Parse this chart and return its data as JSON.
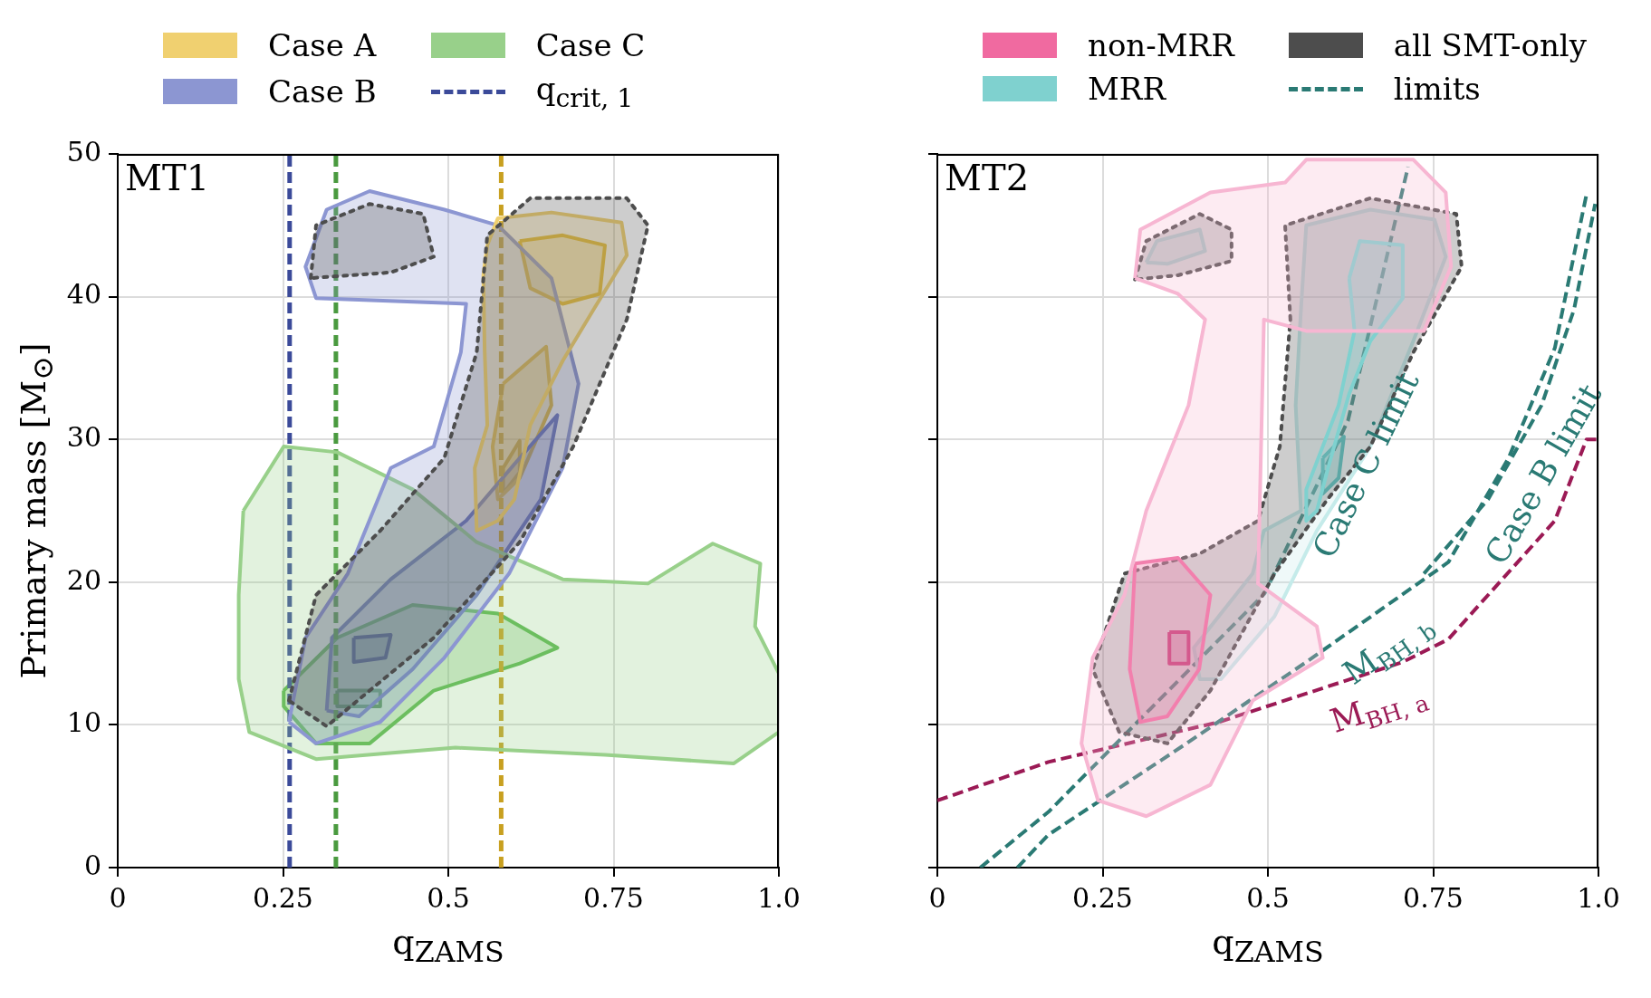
{
  "chart_data": [
    {
      "type": "line",
      "xlabel": "q$_{ZAMS}$",
      "ylabel": "Primary mass [M$_{⊙}$]",
      "xlim": [
        0,
        1
      ],
      "ylim": [
        0,
        50
      ],
      "xticks": [
        0,
        0.25,
        0.5,
        0.75,
        {
          "value": 1,
          "label": "1.0"
        }
      ],
      "yticks": [
        0,
        10,
        20,
        30,
        40,
        50
      ],
      "grid": true,
      "legend": "top",
      "annotations": [
        "MT1"
      ],
      "series": [
        {
          "type": "area",
          "color": "#4d4d4d",
          "line_style": "dotted",
          "x": [
            0.259,
            0.3,
            0.397,
            0.494,
            0.543,
            0.559,
            0.624,
            0.77,
            0.802,
            0.77,
            0.689,
            0.608,
            0.478,
            0.381,
            0.316,
            0.259
          ],
          "values": [
            11.7,
            19.1,
            23.6,
            28.7,
            36.1,
            44.3,
            46.9,
            46.9,
            45.0,
            38.4,
            29.5,
            22.8,
            16.1,
            12.4,
            9.9,
            11.7
          ]
        },
        {
          "type": "area",
          "color": "#4d4d4d",
          "line_style": "dotted",
          "x": [
            0.292,
            0.3,
            0.381,
            0.462,
            0.478,
            0.413,
            0.292
          ],
          "values": [
            41.3,
            45.0,
            46.5,
            45.8,
            42.8,
            41.7,
            41.3
          ]
        },
        {
          "type": "area",
          "name": "Case A",
          "color": "#f0d070",
          "x": [
            0.559,
            0.575,
            0.656,
            0.762,
            0.77,
            0.721,
            0.673,
            0.624,
            0.6,
            0.575,
            0.543,
            0.54,
            0.559,
            0.555,
            0.553,
            0.559
          ],
          "values": [
            43.6,
            45.5,
            45.9,
            45.2,
            42.9,
            39.2,
            35.5,
            31.0,
            25.8,
            24.3,
            23.6,
            28.0,
            31.0,
            36.2,
            41.5,
            43.6
          ]
        },
        {
          "type": "area",
          "name": "Case B",
          "color": "#8c96d2",
          "x": [
            0.259,
            0.284,
            0.348,
            0.413,
            0.478,
            0.519,
            0.527,
            0.3,
            0.284,
            0.316,
            0.381,
            0.494,
            0.575,
            0.656,
            0.697,
            0.673,
            0.592,
            0.494,
            0.397,
            0.3,
            0.259
          ],
          "values": [
            10.2,
            16.1,
            20.6,
            28.0,
            29.5,
            36.1,
            39.5,
            39.9,
            42.1,
            46.1,
            47.4,
            46.1,
            45.0,
            41.3,
            33.9,
            28.0,
            20.6,
            14.7,
            10.2,
            8.7,
            10.2
          ]
        },
        {
          "type": "area",
          "name": "Case C",
          "color": "#98d08a",
          "x": [
            0.19,
            0.251,
            0.332,
            0.446,
            0.543,
            0.673,
            0.802,
            0.9,
            0.972,
            0.964,
            1.0,
            1.0,
            0.932,
            0.737,
            0.511,
            0.3,
            0.199,
            0.183,
            0.183,
            0.19
          ],
          "values": [
            25.0,
            29.5,
            29.1,
            26.5,
            22.8,
            20.2,
            19.9,
            22.7,
            21.3,
            16.9,
            13.6,
            9.5,
            7.3,
            7.9,
            8.4,
            7.6,
            9.5,
            13.2,
            19.1,
            25.0
          ]
        },
        {
          "type": "line",
          "name": "q$_{crit, 1}$",
          "color": "#3b4a99",
          "line_style": "dashed",
          "x": [
            0.26,
            0.26
          ],
          "values": [
            0,
            50
          ]
        },
        {
          "type": "line",
          "color": "#4a9a3f",
          "line_style": "dashed",
          "x": [
            0.33,
            0.33
          ],
          "values": [
            0,
            50
          ]
        },
        {
          "type": "line",
          "color": "#c8a020",
          "line_style": "dashed",
          "x": [
            0.58,
            0.58
          ],
          "values": [
            0,
            50
          ]
        },
        {
          "type": "area",
          "color": "#6670c0",
          "x": [
            0.316,
            0.324,
            0.413,
            0.527,
            0.608,
            0.665,
            0.64,
            0.543,
            0.446,
            0.365,
            0.316
          ],
          "values": [
            11.0,
            16.1,
            20.2,
            24.3,
            28.7,
            31.7,
            25.8,
            19.1,
            13.9,
            10.6,
            11.0
          ]
        },
        {
          "type": "area",
          "color": "#2e3a80",
          "x": [
            0.357,
            0.413,
            0.405,
            0.357,
            0.357
          ],
          "values": [
            16.1,
            16.3,
            14.7,
            14.4,
            16.1
          ]
        },
        {
          "type": "area",
          "color": "#5cb850",
          "x": [
            0.251,
            0.332,
            0.446,
            0.575,
            0.665,
            0.608,
            0.478,
            0.381,
            0.3,
            0.251,
            0.251
          ],
          "values": [
            12.4,
            16.1,
            18.4,
            17.8,
            15.4,
            14.3,
            12.4,
            8.7,
            8.7,
            11.3,
            12.4
          ]
        },
        {
          "type": "area",
          "color": "#3a7a3a",
          "x": [
            0.332,
            0.397,
            0.397,
            0.332,
            0.332
          ],
          "values": [
            12.4,
            12.4,
            11.3,
            11.3,
            12.4
          ]
        },
        {
          "type": "area",
          "color": "#e6bc30",
          "x": [
            0.608,
            0.673,
            0.737,
            0.729,
            0.673,
            0.624,
            0.608
          ],
          "values": [
            43.9,
            44.3,
            43.6,
            40.2,
            39.5,
            40.6,
            43.9
          ]
        },
        {
          "type": "area",
          "color": "#e6bc30",
          "x": [
            0.583,
            0.648,
            0.656,
            0.608,
            0.575,
            0.567,
            0.583
          ],
          "values": [
            33.9,
            36.5,
            32.4,
            27.3,
            25.8,
            29.5,
            33.9
          ]
        },
        {
          "type": "area",
          "color": "#b8962a",
          "x": [
            0.583,
            0.608,
            0.608,
            0.583,
            0.583
          ],
          "values": [
            28.0,
            29.9,
            27.7,
            26.2,
            28.0
          ]
        }
      ]
    },
    {
      "type": "line",
      "xlabel": "q$_{ZAMS}$",
      "xlim": [
        0,
        1
      ],
      "ylim": [
        0,
        50
      ],
      "xticks": [
        0,
        0.25,
        0.5,
        0.75,
        {
          "value": 1,
          "label": "1.0"
        }
      ],
      "yticks": [
        0,
        10,
        20,
        30,
        40,
        50
      ],
      "tick_labels": "x",
      "grid": true,
      "legend": "top",
      "annotations": [
        "MT2",
        {
          "text": "Case C limit",
          "x": 0.6,
          "y": 29.3
        },
        {
          "text": "Case B limit",
          "x": 0.87,
          "y": 28.8
        },
        {
          "text": "M$_{BH, b}$",
          "x": 0.65,
          "y": 17.4
        },
        {
          "text": "M$_{BH, a}$",
          "x": 0.65,
          "y": 13.6
        }
      ],
      "series": [
        {
          "type": "area",
          "color": "#f7b6d2",
          "x": [
            0.299,
            0.307,
            0.413,
            0.526,
            0.558,
            0.72,
            0.769,
            0.777,
            0.736,
            0.558,
            0.494,
            0.485,
            0.574,
            0.583,
            0.477,
            0.413,
            0.316,
            0.243,
            0.218,
            0.235,
            0.283,
            0.316,
            0.38,
            0.405,
            0.364,
            0.299
          ],
          "values": [
            41.3,
            44.7,
            47.3,
            48.0,
            49.6,
            49.6,
            47.3,
            42.1,
            37.6,
            37.6,
            38.4,
            19.9,
            16.9,
            14.7,
            11.7,
            5.8,
            3.6,
            4.7,
            8.7,
            14.7,
            19.1,
            25.0,
            32.4,
            38.4,
            40.2,
            41.3
          ]
        },
        {
          "type": "area",
          "name": "non-MRR",
          "color": "#f06aa0",
          "x": [
            0.299,
            0.364,
            0.413,
            0.396,
            0.348,
            0.307,
            0.291,
            0.299
          ],
          "values": [
            21.3,
            21.7,
            19.1,
            13.9,
            10.6,
            10.2,
            13.9,
            21.3
          ]
        },
        {
          "type": "area",
          "name": "MRR",
          "color": "#7fd1cf",
          "x": [
            0.623,
            0.639,
            0.704,
            0.704,
            0.655,
            0.623,
            0.591,
            0.574,
            0.558,
            0.558,
            0.607,
            0.631,
            0.623
          ],
          "values": [
            41.3,
            43.9,
            43.6,
            39.9,
            36.9,
            33.2,
            28.0,
            25.0,
            24.3,
            26.5,
            32.4,
            37.6,
            41.3
          ]
        },
        {
          "type": "area",
          "name": "all SMT-only",
          "color": "#4d4d4d",
          "line_style": "dotted",
          "x": [
            0.534,
            0.526,
            0.655,
            0.785,
            0.793,
            0.72,
            0.655,
            0.59,
            0.51,
            0.413,
            0.348,
            0.275,
            0.235,
            0.283,
            0.397,
            0.485,
            0.518,
            0.534
          ],
          "values": [
            38.4,
            45.0,
            46.9,
            45.8,
            42.1,
            36.1,
            29.5,
            25.8,
            20.6,
            12.4,
            8.7,
            9.5,
            13.9,
            20.6,
            22.0,
            24.3,
            29.5,
            38.4
          ]
        },
        {
          "type": "line",
          "name": "limits",
          "color": "#2a7a74",
          "line_style": "dashed",
          "x": [
            0.736,
            0.833,
            0.914,
            0.963,
            0.995
          ],
          "values": [
            20.6,
            25.8,
            32.4,
            39.1,
            46.5
          ]
        },
        {
          "type": "area",
          "color": "#4d4d4d",
          "line_style": "dotted",
          "x": [
            0.299,
            0.316,
            0.397,
            0.445,
            0.445,
            0.364,
            0.299
          ],
          "values": [
            41.2,
            43.9,
            45.8,
            44.7,
            42.5,
            41.5,
            41.2
          ]
        },
        {
          "type": "area",
          "color": "#c5ebea",
          "x": [
            0.55,
            0.558,
            0.655,
            0.752,
            0.769,
            0.72,
            0.655,
            0.574,
            0.51,
            0.429,
            0.397,
            0.388,
            0.477,
            0.494,
            0.55,
            0.542,
            0.55
          ],
          "values": [
            39.1,
            45.0,
            46.1,
            45.4,
            42.8,
            36.9,
            29.5,
            23.6,
            17.6,
            13.2,
            13.2,
            15.4,
            20.6,
            23.6,
            25.0,
            32.4,
            39.1
          ]
        },
        {
          "type": "area",
          "color": "#c5ebea",
          "x": [
            0.316,
            0.332,
            0.397,
            0.405,
            0.348,
            0.316
          ],
          "values": [
            42.4,
            43.9,
            44.7,
            43.2,
            42.3,
            42.4
          ]
        },
        {
          "type": "area",
          "color": "#40c0bc",
          "x": [
            0.583,
            0.615,
            0.607,
            0.583,
            0.583
          ],
          "values": [
            28.7,
            30.2,
            27.3,
            26.2,
            28.7
          ]
        },
        {
          "type": "area",
          "color": "#e0106a",
          "x": [
            0.351,
            0.38,
            0.38,
            0.351,
            0.351
          ],
          "values": [
            16.5,
            16.5,
            14.3,
            14.3,
            16.5
          ]
        },
        {
          "type": "line",
          "color": "#2a7a74",
          "line_style": "dashed",
          "x": [
            0.065,
            0.168,
            0.495,
            0.621,
            0.712
          ],
          "values": [
            0,
            3.9,
            19.2,
            31.3,
            49.1
          ]
        },
        {
          "type": "line",
          "color": "#2a7a74",
          "line_style": "dashed",
          "x": [
            0.121,
            0.168,
            0.377,
            0.558,
            0.773,
            0.864,
            0.934,
            0.982
          ],
          "values": [
            0,
            2.3,
            8.7,
            14.4,
            21.4,
            28.7,
            36.4,
            47.2
          ]
        },
        {
          "type": "line",
          "color": "#9b1a55",
          "line_style": "dashed",
          "x": [
            0,
            0.168,
            0.426,
            0.704,
            0.773,
            0.934,
            0.982,
            1.0
          ],
          "values": [
            4.7,
            7.4,
            10.2,
            14.4,
            16.0,
            24.3,
            30.0,
            30.0
          ]
        }
      ]
    }
  ]
}
